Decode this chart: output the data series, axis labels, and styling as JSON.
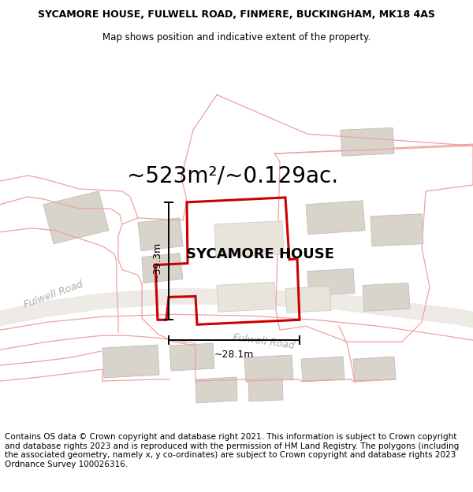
{
  "title_line1": "SYCAMORE HOUSE, FULWELL ROAD, FINMERE, BUCKINGHAM, MK18 4AS",
  "title_line2": "Map shows position and indicative extent of the property.",
  "area_text": "~523m²/~0.129ac.",
  "property_label": "SYCAMORE HOUSE",
  "dim_vertical": "~39.3m",
  "dim_horizontal": "~28.1m",
  "road_label1": "Fulwell Road",
  "road_label2": "Fulwell Road",
  "footer_text": "Contains OS data © Crown copyright and database right 2021. This information is subject to Crown copyright and database rights 2023 and is reproduced with the permission of HM Land Registry. The polygons (including the associated geometry, namely x, y co-ordinates) are subject to Crown copyright and database rights 2023 Ordnance Survey 100026316.",
  "map_bg": "#ffffff",
  "building_fill": "#d8d4cc",
  "building_edge": "#c0bcb4",
  "parcel_line_color": "#f0a0a0",
  "property_outline_color": "#cc0000",
  "dim_line_color": "#000000",
  "title_fontsize": 9.0,
  "subtitle_fontsize": 8.5,
  "area_fontsize": 20,
  "label_fontsize": 13,
  "footer_fontsize": 7.5,
  "road_text_color": "#aaaaaa",
  "road_text_size": 9
}
